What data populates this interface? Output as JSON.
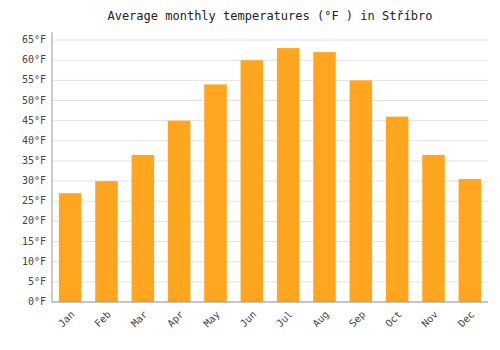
{
  "chart_data": {
    "type": "bar",
    "title": "Average monthly temperatures (°F ) in Stříbro",
    "categories": [
      "Jan",
      "Feb",
      "Mar",
      "Apr",
      "May",
      "Jun",
      "Jul",
      "Aug",
      "Sep",
      "Oct",
      "Nov",
      "Dec"
    ],
    "values": [
      27.0,
      30.0,
      36.5,
      45.0,
      54.0,
      60.0,
      63.0,
      62.0,
      55.0,
      46.0,
      36.5,
      30.5
    ],
    "color": "#FFA520",
    "ylim": [
      0,
      67
    ],
    "yticks": [
      {
        "value": 0,
        "label": "0°F"
      },
      {
        "value": 5,
        "label": "5°F"
      },
      {
        "value": 10,
        "label": "10°F"
      },
      {
        "value": 15,
        "label": "15°F"
      },
      {
        "value": 20,
        "label": "20°F"
      },
      {
        "value": 25,
        "label": "25°F"
      },
      {
        "value": 30,
        "label": "30°F"
      },
      {
        "value": 35,
        "label": "35°F"
      },
      {
        "value": 40,
        "label": "40°F"
      },
      {
        "value": 45,
        "label": "45°F"
      },
      {
        "value": 50,
        "label": "50°F"
      },
      {
        "value": 55,
        "label": "55°F"
      },
      {
        "value": 60,
        "label": "60°F"
      },
      {
        "value": 65,
        "label": "65°F"
      }
    ],
    "grid": true
  }
}
